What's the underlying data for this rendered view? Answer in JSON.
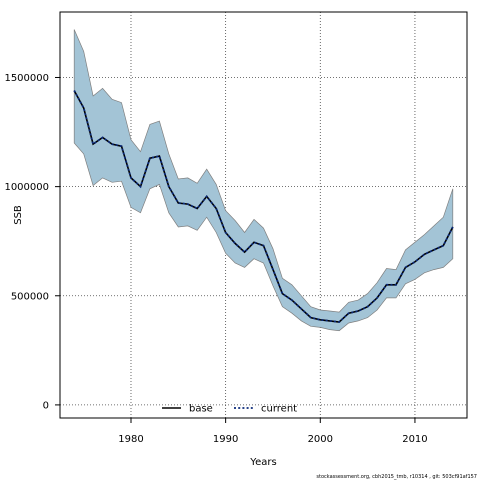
{
  "chart_data": {
    "type": "area",
    "xlabel": "Years",
    "ylabel": "SSB",
    "xlim": [
      1972.5,
      2015.5
    ],
    "ylim": [
      -60000,
      1800000
    ],
    "x_ticks": [
      1980,
      1990,
      2000,
      2010
    ],
    "y_ticks": [
      0,
      500000,
      1000000,
      1500000
    ],
    "x_tick_labels": [
      "1980",
      "1990",
      "2000",
      "2010"
    ],
    "y_tick_labels": [
      "0",
      "500000",
      "1000000",
      "1500000"
    ],
    "grid": true,
    "legend_position": "bottom-left",
    "legend": [
      {
        "label": "base",
        "style": "solid",
        "color": "#000000"
      },
      {
        "label": "current",
        "style": "dotted",
        "color": "#0b2a7a"
      }
    ],
    "band_color": "#a3c4d6",
    "band_edge_color": "#7f7f7f",
    "x": [
      1974,
      1975,
      1976,
      1977,
      1978,
      1979,
      1980,
      1981,
      1982,
      1983,
      1984,
      1985,
      1986,
      1987,
      1988,
      1989,
      1990,
      1991,
      1992,
      1993,
      1994,
      1995,
      1996,
      1997,
      1998,
      1999,
      2000,
      2001,
      2002,
      2003,
      2004,
      2005,
      2006,
      2007,
      2008,
      2009,
      2010,
      2011,
      2012,
      2013,
      2014
    ],
    "series": [
      {
        "name": "base",
        "values": [
          1440000,
          1360000,
          1195000,
          1225000,
          1195000,
          1185000,
          1040000,
          1000000,
          1130000,
          1140000,
          1000000,
          925000,
          920000,
          900000,
          955000,
          900000,
          790000,
          740000,
          700000,
          745000,
          730000,
          620000,
          510000,
          480000,
          440000,
          400000,
          390000,
          385000,
          380000,
          420000,
          430000,
          450000,
          490000,
          550000,
          550000,
          630000,
          655000,
          690000,
          710000,
          730000,
          815000
        ]
      },
      {
        "name": "current",
        "values": [
          1440000,
          1360000,
          1195000,
          1225000,
          1195000,
          1185000,
          1040000,
          1000000,
          1130000,
          1140000,
          1000000,
          925000,
          920000,
          900000,
          955000,
          900000,
          790000,
          740000,
          700000,
          745000,
          730000,
          620000,
          510000,
          480000,
          440000,
          400000,
          390000,
          385000,
          380000,
          420000,
          430000,
          450000,
          490000,
          550000,
          550000,
          630000,
          655000,
          690000,
          710000,
          730000,
          815000
        ]
      }
    ],
    "lower": [
      1200000,
      1150000,
      1005000,
      1040000,
      1020000,
      1025000,
      905000,
      880000,
      990000,
      1010000,
      880000,
      815000,
      820000,
      800000,
      860000,
      790000,
      695000,
      650000,
      630000,
      670000,
      650000,
      545000,
      450000,
      420000,
      385000,
      360000,
      355000,
      345000,
      340000,
      375000,
      385000,
      400000,
      435000,
      490000,
      490000,
      555000,
      575000,
      605000,
      620000,
      630000,
      670000
    ],
    "upper": [
      1720000,
      1620000,
      1415000,
      1450000,
      1400000,
      1385000,
      1215000,
      1160000,
      1285000,
      1300000,
      1150000,
      1035000,
      1040000,
      1015000,
      1080000,
      1010000,
      890000,
      845000,
      790000,
      850000,
      810000,
      715000,
      580000,
      550000,
      500000,
      450000,
      435000,
      430000,
      425000,
      470000,
      480000,
      510000,
      560000,
      625000,
      620000,
      710000,
      745000,
      780000,
      820000,
      860000,
      990000
    ]
  },
  "footnote": "stockassessment.org, cbh2015_tmb, r10314 , git: 503cf91af157"
}
